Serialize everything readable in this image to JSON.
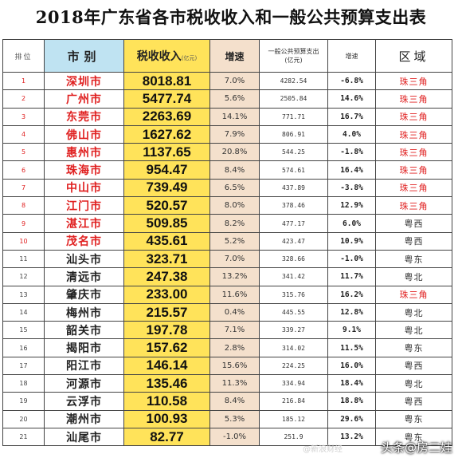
{
  "title": "2018年广东省各市税收收入和一般公共预算支出表",
  "headers": {
    "rank": "排位",
    "city": "市别",
    "tax": "税收收入",
    "tax_unit": "(亿元)",
    "growth1": "增速",
    "budget": "一般公共预算支出",
    "budget_unit": "(亿元)",
    "growth2": "增速",
    "region": "区域"
  },
  "rows": [
    {
      "rank": "1",
      "city": "深圳市",
      "tax": "8018.81",
      "growth1": "7.0%",
      "budget": "4282.54",
      "growth2": "-6.8%",
      "region": "珠三角",
      "red": true
    },
    {
      "rank": "2",
      "city": "广州市",
      "tax": "5477.74",
      "growth1": "5.6%",
      "budget": "2505.84",
      "growth2": "14.6%",
      "region": "珠三角",
      "red": true
    },
    {
      "rank": "3",
      "city": "东莞市",
      "tax": "2263.69",
      "growth1": "14.1%",
      "budget": "771.71",
      "growth2": "16.7%",
      "region": "珠三角",
      "red": true
    },
    {
      "rank": "4",
      "city": "佛山市",
      "tax": "1627.62",
      "growth1": "7.9%",
      "budget": "806.91",
      "growth2": "4.0%",
      "region": "珠三角",
      "red": true
    },
    {
      "rank": "5",
      "city": "惠州市",
      "tax": "1137.65",
      "growth1": "20.8%",
      "budget": "544.25",
      "growth2": "-1.8%",
      "region": "珠三角",
      "red": true
    },
    {
      "rank": "6",
      "city": "珠海市",
      "tax": "954.47",
      "growth1": "8.4%",
      "budget": "574.61",
      "growth2": "16.4%",
      "region": "珠三角",
      "red": true
    },
    {
      "rank": "7",
      "city": "中山市",
      "tax": "739.49",
      "growth1": "6.5%",
      "budget": "437.89",
      "growth2": "-3.8%",
      "region": "珠三角",
      "red": true
    },
    {
      "rank": "8",
      "city": "江门市",
      "tax": "520.57",
      "growth1": "8.0%",
      "budget": "378.46",
      "growth2": "12.9%",
      "region": "珠三角",
      "red": true
    },
    {
      "rank": "9",
      "city": "湛江市",
      "tax": "509.85",
      "growth1": "8.2%",
      "budget": "477.17",
      "growth2": "6.0%",
      "region": "粤西",
      "red": true
    },
    {
      "rank": "10",
      "city": "茂名市",
      "tax": "435.61",
      "growth1": "5.2%",
      "budget": "423.47",
      "growth2": "10.9%",
      "region": "粤西",
      "red": true
    },
    {
      "rank": "11",
      "city": "汕头市",
      "tax": "323.71",
      "growth1": "7.0%",
      "budget": "328.66",
      "growth2": "-1.0%",
      "region": "粤东",
      "red": false
    },
    {
      "rank": "12",
      "city": "清远市",
      "tax": "247.38",
      "growth1": "13.2%",
      "budget": "341.42",
      "growth2": "11.7%",
      "region": "粤北",
      "red": false
    },
    {
      "rank": "13",
      "city": "肇庆市",
      "tax": "233.00",
      "growth1": "11.6%",
      "budget": "315.76",
      "growth2": "16.2%",
      "region": "珠三角",
      "red": false
    },
    {
      "rank": "14",
      "city": "梅州市",
      "tax": "215.57",
      "growth1": "0.4%",
      "budget": "445.55",
      "growth2": "12.8%",
      "region": "粤北",
      "red": false
    },
    {
      "rank": "15",
      "city": "韶关市",
      "tax": "197.78",
      "growth1": "7.1%",
      "budget": "339.27",
      "growth2": "9.1%",
      "region": "粤北",
      "red": false
    },
    {
      "rank": "16",
      "city": "揭阳市",
      "tax": "157.62",
      "growth1": "2.8%",
      "budget": "314.02",
      "growth2": "11.5%",
      "region": "粤东",
      "red": false
    },
    {
      "rank": "17",
      "city": "阳江市",
      "tax": "146.14",
      "growth1": "15.6%",
      "budget": "224.25",
      "growth2": "16.0%",
      "region": "粤西",
      "red": false
    },
    {
      "rank": "18",
      "city": "河源市",
      "tax": "135.46",
      "growth1": "11.3%",
      "budget": "334.94",
      "growth2": "18.4%",
      "region": "粤北",
      "red": false
    },
    {
      "rank": "19",
      "city": "云浮市",
      "tax": "110.58",
      "growth1": "8.4%",
      "budget": "216.84",
      "growth2": "18.8%",
      "region": "粤西",
      "red": false
    },
    {
      "rank": "20",
      "city": "潮州市",
      "tax": "100.93",
      "growth1": "5.3%",
      "budget": "185.12",
      "growth2": "29.6%",
      "region": "粤东",
      "red": false
    },
    {
      "rank": "21",
      "city": "汕尾市",
      "tax": "82.77",
      "growth1": "-1.0%",
      "budget": "251.9",
      "growth2": "13.2%",
      "region": "粤东",
      "red": false
    }
  ],
  "watermark": "头条@房二娃",
  "watermark_faint": "@新浪财经"
}
